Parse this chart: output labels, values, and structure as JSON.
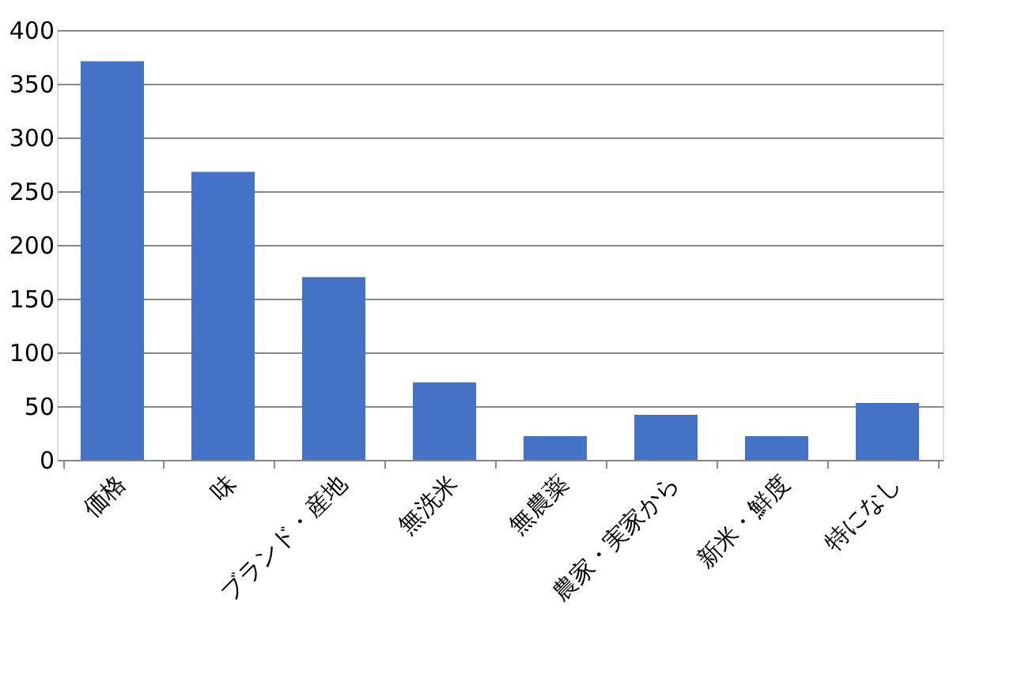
{
  "chart_data": {
    "type": "bar",
    "categories": [
      "価格",
      "味",
      "ブランド・産地",
      "無洗米",
      "無農薬",
      "農家・実家から",
      "新米・鮮度",
      "特になし"
    ],
    "values": [
      371,
      268,
      170,
      72,
      22,
      42,
      22,
      53
    ],
    "color": "#4472c4",
    "ylim": [
      0,
      400
    ],
    "yticks": [
      0,
      50,
      100,
      150,
      200,
      250,
      300,
      350,
      400
    ],
    "grid": "y"
  }
}
